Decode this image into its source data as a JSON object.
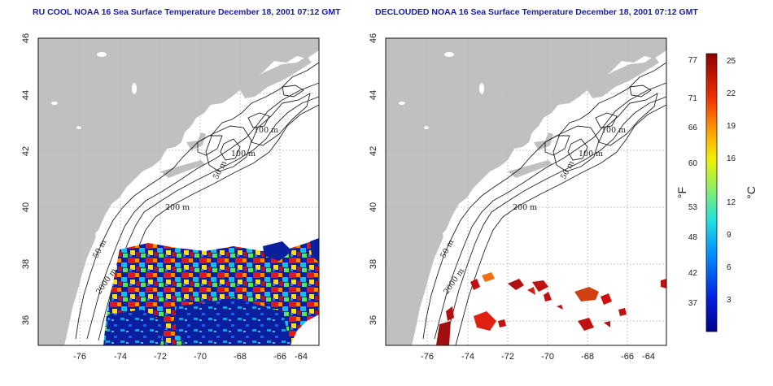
{
  "titles": {
    "left": "RU COOL NOAA 16 Sea Surface Temperature December 18, 2001 07:12 GMT",
    "right": "DECLOUDED NOAA 16 Sea Surface Temperature December 18, 2001 07:12 GMT"
  },
  "axes": {
    "lon_ticks": [
      "-76",
      "-74",
      "-72",
      "-70",
      "-68",
      "-66",
      "-64"
    ],
    "lat_ticks": [
      "46",
      "44",
      "42",
      "40",
      "38",
      "36"
    ]
  },
  "contour_labels": {
    "c100a": "100 m",
    "c100b": "100 m",
    "c50a": "50 m",
    "c200": "200 m",
    "c50b": "50 m",
    "c2000": "2000 m"
  },
  "colorbar": {
    "fahrenheit_unit": "°F",
    "celsius_unit": "°C",
    "fahrenheit_ticks": [
      "77",
      "71",
      "66",
      "60",
      "53",
      "48",
      "42",
      "37"
    ],
    "celsius_ticks": [
      "25",
      "22",
      "19",
      "16",
      "12",
      "9",
      "6",
      "3"
    ]
  },
  "colors": {
    "land": "#c0c0c0",
    "ocean": "#ffffff",
    "title": "#1a1aa0",
    "sst_cold": "#0a1ea0",
    "sst_warm": "#d01010"
  }
}
